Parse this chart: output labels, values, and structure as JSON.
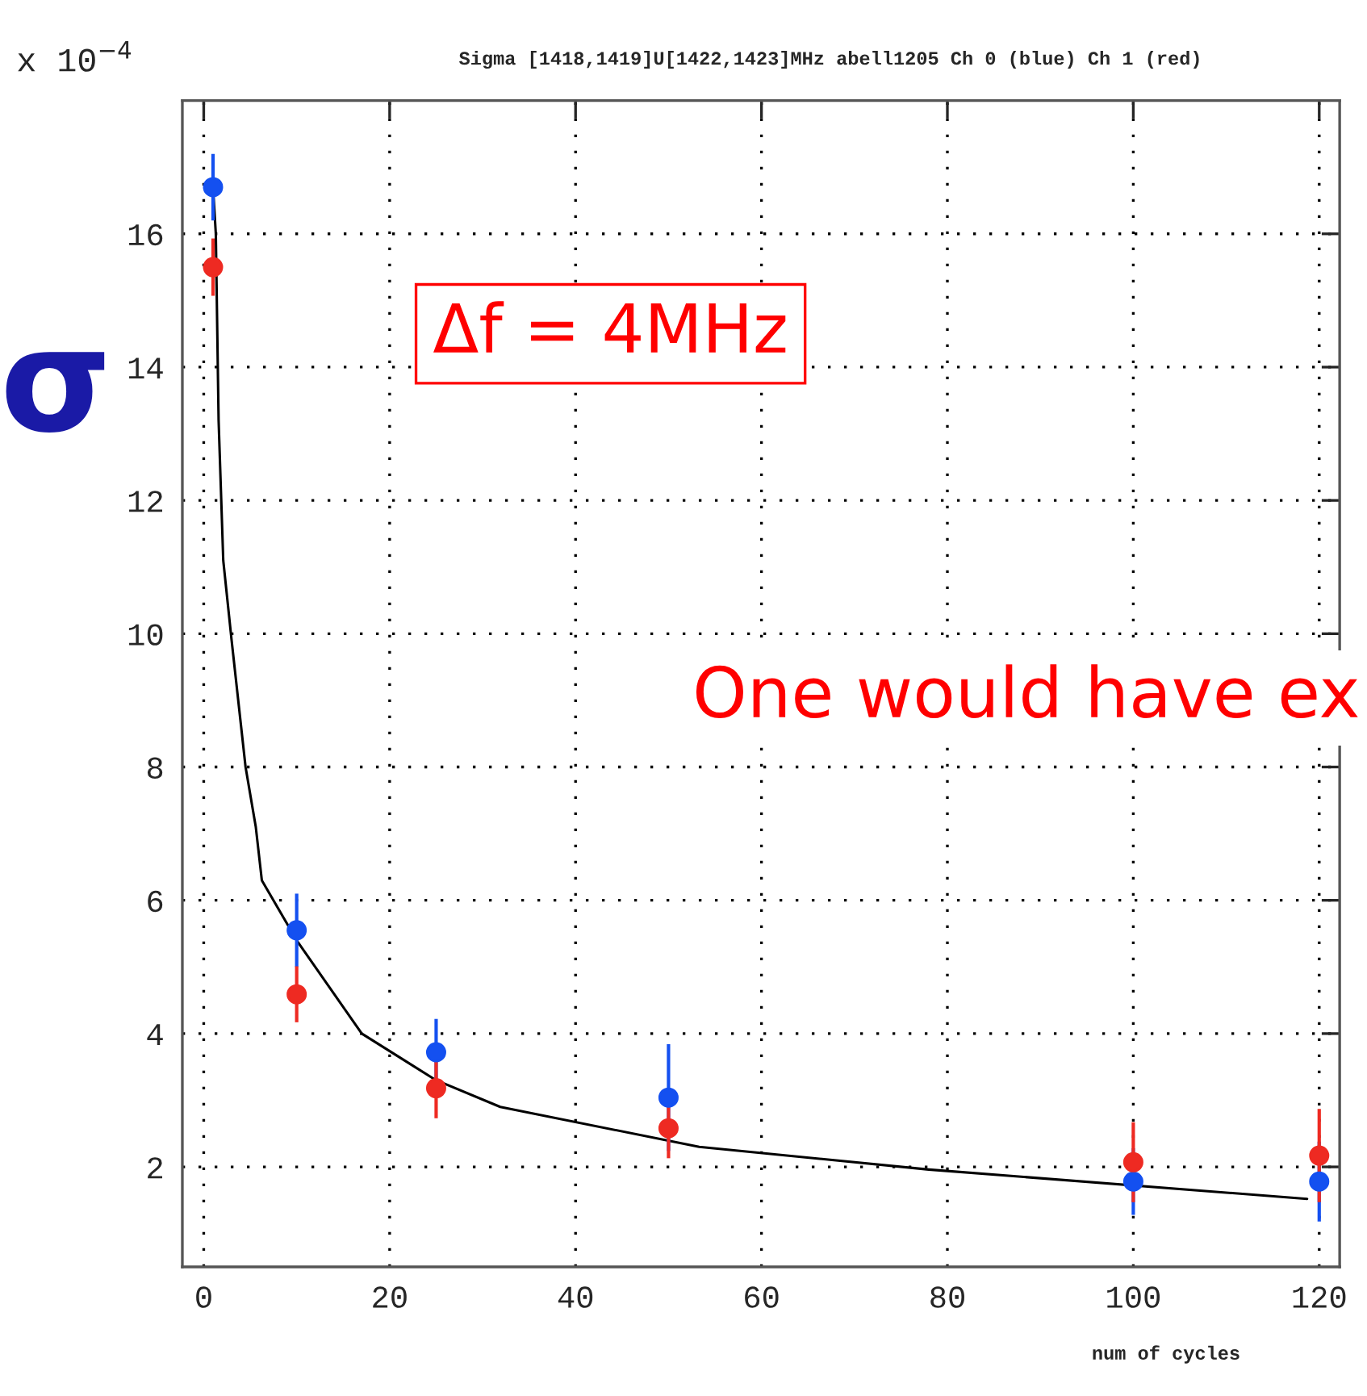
{
  "chart_data": {
    "type": "scatter",
    "title": "Sigma [1418,1419]U[1422,1423]MHz abell1205 Ch 0 (blue) Ch 1 (red)",
    "xlabel": "num of cycles",
    "annotations": [
      "x 10$^{−4}$",
      "σ",
      "Δf = 4MHz",
      "One would have ex"
    ],
    "xlim": [
      -2.3,
      122.2
    ],
    "ylim": [
      0.5,
      18
    ],
    "xticks": [
      0,
      20,
      40,
      60,
      80,
      100,
      120
    ],
    "yticks": [
      2,
      4,
      6,
      8,
      10,
      12,
      14,
      16
    ],
    "grid": true,
    "series": [
      {
        "marker": "circle",
        "color": "#1450f0",
        "x": [
          1,
          10,
          25,
          50,
          100,
          120
        ],
        "values": [
          16.7,
          5.55,
          3.72,
          3.04,
          1.78,
          1.78
        ],
        "errors": [
          0.5,
          0.55,
          0.5,
          0.8,
          0.5,
          0.6
        ]
      },
      {
        "marker": "circle",
        "color": "#ee2a22",
        "x": [
          1,
          10,
          25,
          50,
          100,
          120
        ],
        "values": [
          15.5,
          4.59,
          3.18,
          2.58,
          2.07,
          2.17
        ],
        "errors": [
          0.43,
          0.42,
          0.45,
          0.45,
          0.6,
          0.7
        ]
      },
      {
        "type": "line",
        "color": "#000000",
        "x": [
          1,
          1.3,
          1.6,
          2.1,
          3.0,
          4.5,
          5.6,
          6.25,
          10,
          17,
          25,
          31.9,
          53.3,
          78,
          118.7
        ],
        "values": [
          16.7,
          16,
          13.2,
          11.1,
          9.9,
          8.0,
          7.1,
          6.3,
          5.4,
          4.0,
          3.3,
          2.9,
          2.3,
          1.96,
          1.52
        ]
      }
    ]
  }
}
